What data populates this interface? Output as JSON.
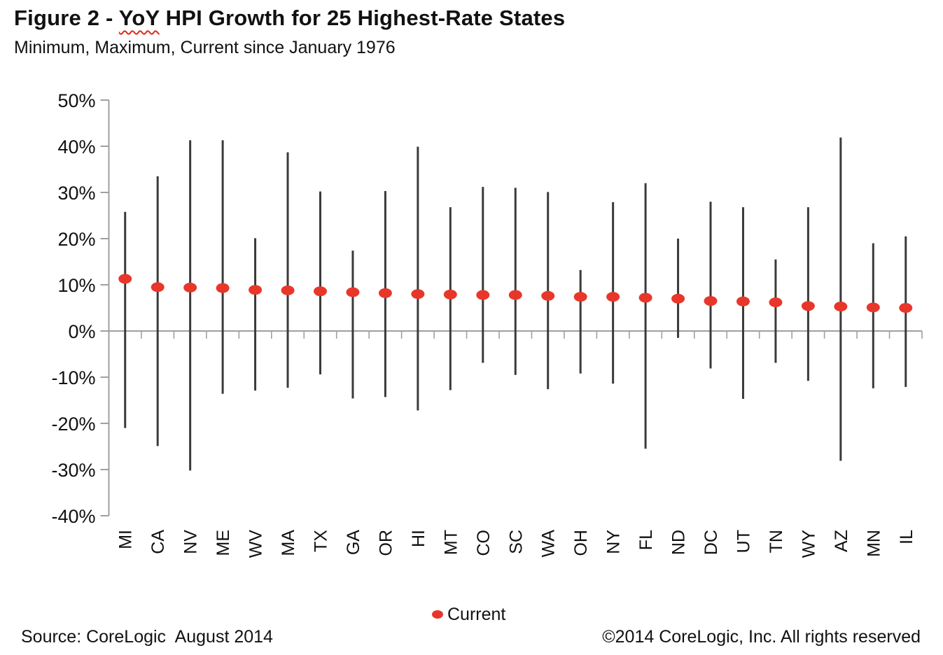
{
  "title": {
    "prefix": "Figure 2 - ",
    "underlined_word": "YoY",
    "suffix": " HPI Growth for 25 Highest-Rate States"
  },
  "subtitle": "Minimum, Maximum, Current since January 1976",
  "legend": {
    "label": "Current"
  },
  "footer": {
    "source": "Source: CoreLogic  August 2014",
    "copyright": "©2014 CoreLogic, Inc. All rights reserved"
  },
  "colors": {
    "current_dot": "#e8372a",
    "range_line": "#3a3a3a",
    "axis": "#a0a0a0",
    "text": "#111111"
  },
  "chart_data": {
    "type": "range-dot",
    "title": "Figure 2 - YoY HPI Growth for 25 Highest-Rate States",
    "subtitle": "Minimum, Maximum, Current since January 1976",
    "categories": [
      "MI",
      "CA",
      "NV",
      "ME",
      "WV",
      "MA",
      "TX",
      "GA",
      "OR",
      "HI",
      "MT",
      "CO",
      "SC",
      "WA",
      "OH",
      "NY",
      "FL",
      "ND",
      "DC",
      "UT",
      "TN",
      "WY",
      "AZ",
      "MN",
      "IL"
    ],
    "series": [
      {
        "name": "Maximum",
        "values": [
          25.8,
          33.5,
          41.3,
          41.3,
          20.1,
          38.7,
          30.2,
          17.4,
          30.3,
          39.9,
          26.8,
          31.2,
          31.0,
          30.1,
          13.2,
          27.9,
          32.0,
          20.0,
          28.0,
          26.8,
          15.5,
          26.8,
          41.9,
          19.0,
          20.5
        ]
      },
      {
        "name": "Minimum",
        "values": [
          -21.0,
          -24.9,
          -30.2,
          -13.6,
          -12.9,
          -12.3,
          -9.4,
          -14.6,
          -14.3,
          -17.2,
          -12.8,
          -6.9,
          -9.5,
          -12.6,
          -9.2,
          -11.4,
          -25.5,
          -1.5,
          -8.1,
          -14.7,
          -6.9,
          -10.8,
          -28.1,
          -12.4,
          -12.1
        ]
      },
      {
        "name": "Current",
        "values": [
          11.3,
          9.5,
          9.4,
          9.3,
          8.9,
          8.8,
          8.6,
          8.4,
          8.2,
          8.0,
          7.9,
          7.8,
          7.8,
          7.6,
          7.4,
          7.4,
          7.2,
          7.0,
          6.5,
          6.4,
          6.2,
          5.4,
          5.3,
          5.1,
          5.0
        ]
      }
    ],
    "xlabel": "",
    "ylabel": "",
    "ylim": [
      -40,
      50
    ],
    "ytick_step": 10,
    "yticks": [
      {
        "value": 50,
        "label": "50%"
      },
      {
        "value": 40,
        "label": "40%"
      },
      {
        "value": 30,
        "label": "30%"
      },
      {
        "value": 20,
        "label": "20%"
      },
      {
        "value": 10,
        "label": "10%"
      },
      {
        "value": 0,
        "label": "0%"
      },
      {
        "value": -10,
        "label": "-10%"
      },
      {
        "value": -20,
        "label": "-20%"
      },
      {
        "value": -30,
        "label": "-30%"
      },
      {
        "value": -40,
        "label": "-40%"
      }
    ],
    "grid": false,
    "legend_position": "bottom-center",
    "legend_entries": [
      "Current"
    ]
  }
}
